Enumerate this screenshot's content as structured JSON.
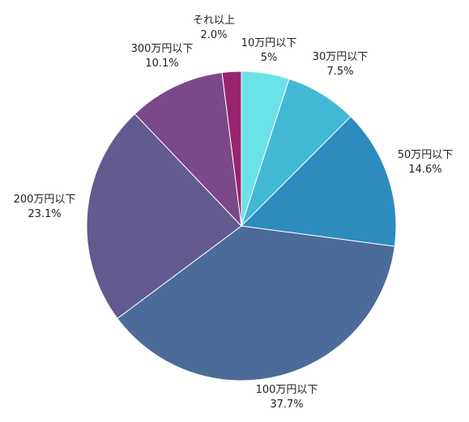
{
  "chart_data": {
    "type": "pie",
    "start_angle_deg": 0,
    "direction": "clockwise",
    "slices": [
      {
        "label": "10万円以下",
        "value_label": "5%",
        "value": 5.0,
        "color": "#6ae3e8"
      },
      {
        "label": "30万円以下",
        "value_label": "7.5%",
        "value": 7.5,
        "color": "#43b8d6"
      },
      {
        "label": "50万円以下",
        "value_label": "14.6%",
        "value": 14.6,
        "color": "#2d8bbd"
      },
      {
        "label": "100万円以下",
        "value_label": "37.7%",
        "value": 37.7,
        "color": "#4d6b99"
      },
      {
        "label": "200万円以下",
        "value_label": "23.1%",
        "value": 23.1,
        "color": "#635a8f"
      },
      {
        "label": "300万円以下",
        "value_label": "10.1%",
        "value": 10.1,
        "color": "#7b4889"
      },
      {
        "label": "それ以上",
        "value_label": "2.0%",
        "value": 2.0,
        "color": "#982470"
      }
    ]
  }
}
